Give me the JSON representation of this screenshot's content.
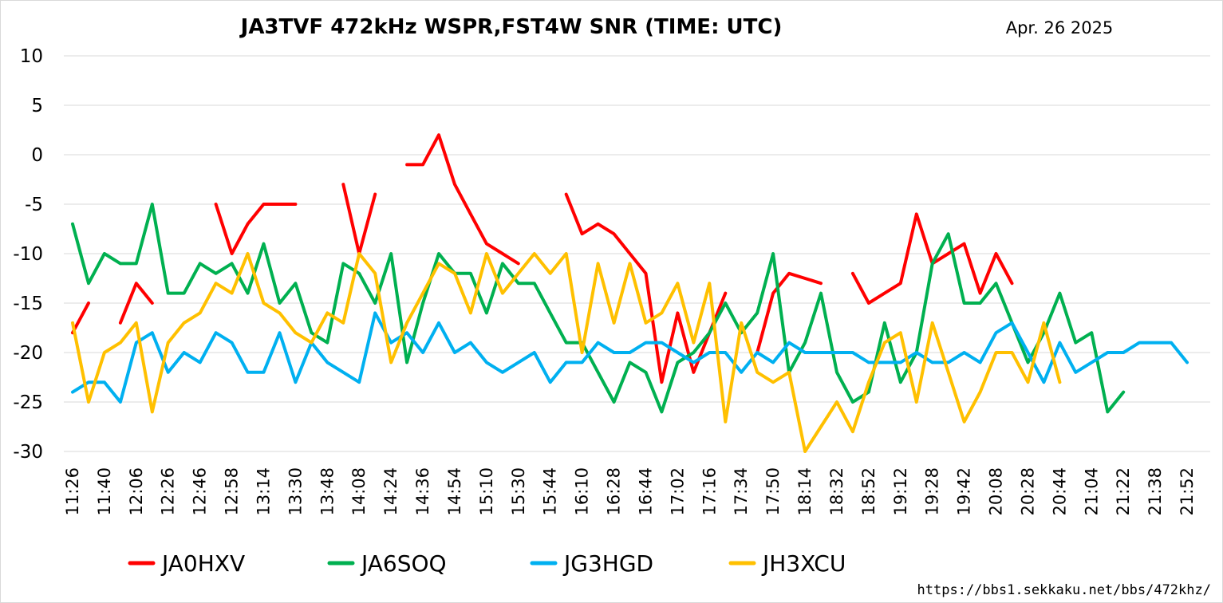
{
  "chart_data": {
    "type": "line",
    "title": "JA3TVF 472kHz WSPR,FST4W SNR (TIME: UTC)",
    "date": "Apr. 26 2025",
    "source_url": "https://bbs1.sekkaku.net/bbs/472khz/",
    "ylim": [
      -30,
      10
    ],
    "yticks": [
      10,
      5,
      0,
      -5,
      -10,
      -15,
      -20,
      -25,
      -30
    ],
    "xlim": [
      0,
      71
    ],
    "x_tick_labels": [
      {
        "i": 0,
        "label": "11:26"
      },
      {
        "i": 2,
        "label": "11:40"
      },
      {
        "i": 4,
        "label": "12:06"
      },
      {
        "i": 6,
        "label": "12:26"
      },
      {
        "i": 8,
        "label": "12:46"
      },
      {
        "i": 10,
        "label": "12:58"
      },
      {
        "i": 12,
        "label": "13:14"
      },
      {
        "i": 14,
        "label": "13:30"
      },
      {
        "i": 16,
        "label": "13:48"
      },
      {
        "i": 18,
        "label": "14:08"
      },
      {
        "i": 20,
        "label": "14:24"
      },
      {
        "i": 22,
        "label": "14:36"
      },
      {
        "i": 24,
        "label": "14:54"
      },
      {
        "i": 26,
        "label": "15:10"
      },
      {
        "i": 28,
        "label": "15:30"
      },
      {
        "i": 30,
        "label": "15:44"
      },
      {
        "i": 32,
        "label": "16:10"
      },
      {
        "i": 34,
        "label": "16:28"
      },
      {
        "i": 36,
        "label": "16:44"
      },
      {
        "i": 38,
        "label": "17:02"
      },
      {
        "i": 40,
        "label": "17:16"
      },
      {
        "i": 42,
        "label": "17:34"
      },
      {
        "i": 44,
        "label": "17:50"
      },
      {
        "i": 46,
        "label": "18:14"
      },
      {
        "i": 48,
        "label": "18:32"
      },
      {
        "i": 50,
        "label": "18:52"
      },
      {
        "i": 52,
        "label": "19:12"
      },
      {
        "i": 54,
        "label": "19:28"
      },
      {
        "i": 56,
        "label": "19:42"
      },
      {
        "i": 58,
        "label": "20:08"
      },
      {
        "i": 60,
        "label": "20:28"
      },
      {
        "i": 62,
        "label": "20:44"
      },
      {
        "i": 64,
        "label": "21:04"
      },
      {
        "i": 66,
        "label": "21:22"
      },
      {
        "i": 68,
        "label": "21:38"
      },
      {
        "i": 70,
        "label": "21:52"
      }
    ],
    "grid": "horizontal",
    "legend_position": "bottom",
    "series": [
      {
        "name": "JA0HXV",
        "color": "#ff0000",
        "segments": [
          [
            [
              0,
              -18
            ],
            [
              1,
              -15
            ]
          ],
          [
            [
              3,
              -17
            ],
            [
              4,
              -13
            ],
            [
              5,
              -15
            ]
          ],
          [
            [
              9,
              -5
            ],
            [
              10,
              -10
            ],
            [
              11,
              -7
            ],
            [
              12,
              -5
            ],
            [
              13,
              -5
            ],
            [
              14,
              -5
            ]
          ],
          [
            [
              17,
              -3
            ],
            [
              18,
              -10
            ],
            [
              19,
              -4
            ]
          ],
          [
            [
              21,
              -1
            ],
            [
              22,
              -1
            ],
            [
              23,
              2
            ],
            [
              24,
              -3
            ],
            [
              25,
              -6
            ],
            [
              26,
              -9
            ],
            [
              27,
              -10
            ],
            [
              28,
              -11
            ]
          ],
          [
            [
              31,
              -4
            ],
            [
              32,
              -8
            ],
            [
              33,
              -7
            ],
            [
              34,
              -8
            ],
            [
              35,
              -10
            ],
            [
              36,
              -12
            ],
            [
              37,
              -23
            ],
            [
              38,
              -16
            ],
            [
              39,
              -22
            ],
            [
              40,
              -18
            ],
            [
              41,
              -14
            ]
          ],
          [
            [
              43,
              -20
            ],
            [
              44,
              -14
            ],
            [
              45,
              -12
            ],
            [
              46,
              -12.5
            ],
            [
              47,
              -13
            ]
          ],
          [
            [
              49,
              -12
            ],
            [
              50,
              -15
            ],
            [
              51,
              -14
            ],
            [
              52,
              -13
            ],
            [
              53,
              -6
            ],
            [
              54,
              -11
            ],
            [
              55,
              -10
            ],
            [
              56,
              -9
            ],
            [
              57,
              -14
            ],
            [
              58,
              -10
            ],
            [
              59,
              -13
            ]
          ]
        ]
      },
      {
        "name": "JA6SOQ",
        "color": "#00b050",
        "segments": [
          [
            [
              0,
              -7
            ],
            [
              1,
              -13
            ],
            [
              2,
              -10
            ],
            [
              3,
              -11
            ],
            [
              4,
              -11
            ],
            [
              5,
              -5
            ],
            [
              6,
              -14
            ],
            [
              7,
              -14
            ],
            [
              8,
              -11
            ],
            [
              9,
              -12
            ],
            [
              10,
              -11
            ],
            [
              11,
              -14
            ],
            [
              12,
              -9
            ],
            [
              13,
              -15
            ],
            [
              14,
              -13
            ],
            [
              15,
              -18
            ],
            [
              16,
              -19
            ],
            [
              17,
              -11
            ],
            [
              18,
              -12
            ],
            [
              19,
              -15
            ],
            [
              20,
              -10
            ],
            [
              21,
              -21
            ],
            [
              22,
              -15
            ],
            [
              23,
              -10
            ],
            [
              24,
              -12
            ],
            [
              25,
              -12
            ],
            [
              26,
              -16
            ],
            [
              27,
              -11
            ],
            [
              28,
              -13
            ],
            [
              29,
              -13
            ],
            [
              30,
              -16
            ],
            [
              31,
              -19
            ],
            [
              32,
              -19
            ],
            [
              33,
              -22
            ],
            [
              34,
              -25
            ],
            [
              35,
              -21
            ],
            [
              36,
              -22
            ],
            [
              37,
              -26
            ],
            [
              38,
              -21
            ],
            [
              39,
              -20
            ],
            [
              40,
              -18
            ],
            [
              41,
              -15
            ],
            [
              42,
              -18
            ],
            [
              43,
              -16
            ],
            [
              44,
              -10
            ],
            [
              45,
              -22
            ],
            [
              46,
              -19
            ],
            [
              47,
              -14
            ],
            [
              48,
              -22
            ],
            [
              49,
              -25
            ],
            [
              50,
              -24
            ],
            [
              51,
              -17
            ],
            [
              52,
              -23
            ],
            [
              53,
              -20
            ],
            [
              54,
              -11
            ],
            [
              55,
              -8
            ],
            [
              56,
              -15
            ],
            [
              57,
              -15
            ],
            [
              58,
              -13
            ],
            [
              59,
              -17
            ],
            [
              60,
              -21
            ],
            [
              61,
              -18
            ],
            [
              62,
              -14
            ],
            [
              63,
              -19
            ],
            [
              64,
              -18
            ],
            [
              65,
              -26
            ],
            [
              66,
              -24
            ]
          ]
        ]
      },
      {
        "name": "JG3HGD",
        "color": "#00b0f0",
        "segments": [
          [
            [
              0,
              -24
            ],
            [
              1,
              -23
            ],
            [
              2,
              -23
            ],
            [
              3,
              -25
            ],
            [
              4,
              -19
            ],
            [
              5,
              -18
            ],
            [
              6,
              -22
            ],
            [
              7,
              -20
            ],
            [
              8,
              -21
            ],
            [
              9,
              -18
            ],
            [
              10,
              -19
            ],
            [
              11,
              -22
            ],
            [
              12,
              -22
            ],
            [
              13,
              -18
            ],
            [
              14,
              -23
            ],
            [
              15,
              -19
            ],
            [
              16,
              -21
            ],
            [
              17,
              -22
            ],
            [
              18,
              -23
            ],
            [
              19,
              -16
            ],
            [
              20,
              -19
            ],
            [
              21,
              -18
            ],
            [
              22,
              -20
            ],
            [
              23,
              -17
            ],
            [
              24,
              -20
            ],
            [
              25,
              -19
            ],
            [
              26,
              -21
            ],
            [
              27,
              -22
            ],
            [
              28,
              -21
            ],
            [
              29,
              -20
            ],
            [
              30,
              -23
            ],
            [
              31,
              -21
            ],
            [
              32,
              -21
            ],
            [
              33,
              -19
            ],
            [
              34,
              -20
            ],
            [
              35,
              -20
            ],
            [
              36,
              -19
            ],
            [
              37,
              -19
            ],
            [
              38,
              -20
            ],
            [
              39,
              -21
            ],
            [
              40,
              -20
            ],
            [
              41,
              -20
            ],
            [
              42,
              -22
            ],
            [
              43,
              -20
            ],
            [
              44,
              -21
            ],
            [
              45,
              -19
            ],
            [
              46,
              -20
            ],
            [
              47,
              -20
            ],
            [
              48,
              -20
            ],
            [
              49,
              -20
            ],
            [
              50,
              -21
            ],
            [
              51,
              -21
            ],
            [
              52,
              -21
            ],
            [
              53,
              -20
            ],
            [
              54,
              -21
            ],
            [
              55,
              -21
            ],
            [
              56,
              -20
            ],
            [
              57,
              -21
            ],
            [
              58,
              -18
            ],
            [
              59,
              -17
            ],
            [
              60,
              -20
            ],
            [
              61,
              -23
            ],
            [
              62,
              -19
            ],
            [
              63,
              -22
            ],
            [
              64,
              -21
            ],
            [
              65,
              -20
            ],
            [
              66,
              -20
            ],
            [
              67,
              -19
            ],
            [
              68,
              -19
            ],
            [
              69,
              -19
            ],
            [
              70,
              -21
            ]
          ]
        ]
      },
      {
        "name": "JH3XCU",
        "color": "#ffc000",
        "segments": [
          [
            [
              0,
              -17
            ],
            [
              1,
              -25
            ],
            [
              2,
              -20
            ],
            [
              3,
              -19
            ],
            [
              4,
              -17
            ],
            [
              5,
              -26
            ],
            [
              6,
              -19
            ],
            [
              7,
              -17
            ],
            [
              8,
              -16
            ],
            [
              9,
              -13
            ],
            [
              10,
              -14
            ],
            [
              11,
              -10
            ],
            [
              12,
              -15
            ],
            [
              13,
              -16
            ],
            [
              14,
              -18
            ],
            [
              15,
              -19
            ],
            [
              16,
              -16
            ],
            [
              17,
              -17
            ],
            [
              18,
              -10
            ],
            [
              19,
              -12
            ],
            [
              20,
              -21
            ],
            [
              21,
              -17
            ],
            [
              22,
              -14
            ],
            [
              23,
              -11
            ],
            [
              24,
              -12
            ],
            [
              25,
              -16
            ],
            [
              26,
              -10
            ],
            [
              27,
              -14
            ],
            [
              28,
              -12
            ],
            [
              29,
              -10
            ],
            [
              30,
              -12
            ],
            [
              31,
              -10
            ],
            [
              32,
              -20
            ],
            [
              33,
              -11
            ],
            [
              34,
              -17
            ],
            [
              35,
              -11
            ],
            [
              36,
              -17
            ],
            [
              37,
              -16
            ],
            [
              38,
              -13
            ],
            [
              39,
              -19
            ],
            [
              40,
              -13
            ],
            [
              41,
              -27
            ],
            [
              42,
              -17
            ],
            [
              43,
              -22
            ],
            [
              44,
              -23
            ],
            [
              45,
              -22
            ],
            [
              46,
              -30
            ],
            [
              47,
              -27.5
            ],
            [
              48,
              -25
            ],
            [
              49,
              -28
            ],
            [
              50,
              -23
            ],
            [
              51,
              -19
            ],
            [
              52,
              -18
            ],
            [
              53,
              -25
            ],
            [
              54,
              -17
            ],
            [
              55,
              -22
            ],
            [
              56,
              -27
            ],
            [
              57,
              -24
            ],
            [
              58,
              -20
            ],
            [
              59,
              -20
            ],
            [
              60,
              -23
            ],
            [
              61,
              -17
            ],
            [
              62,
              -23
            ]
          ]
        ]
      }
    ]
  }
}
